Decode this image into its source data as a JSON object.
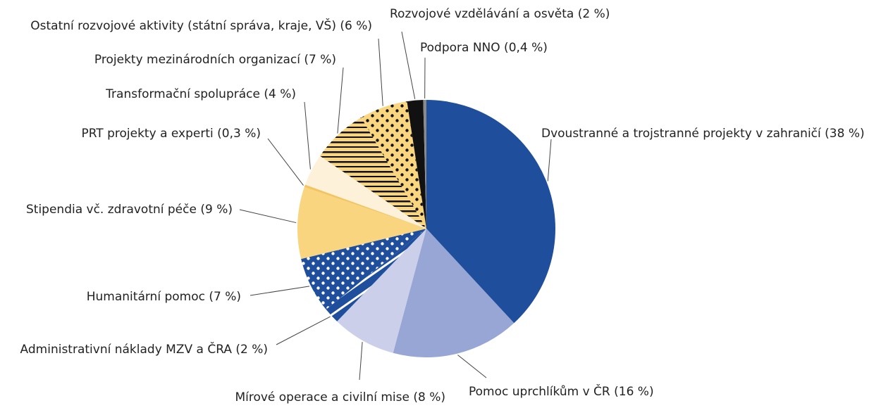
{
  "chart_data": {
    "type": "pie",
    "categories": [
      "Dvoustranné a trojstranné projekty v zahraničí (38 %)",
      "Pomoc uprchlíkům v ČR (16 %)",
      "Mírové operace a civilní mise (8 %)",
      "Administrativní náklady MZV a ČRA (2 %)",
      "Humanitární pomoc (7 %)",
      "Stipendia vč. zdravotní péče (9 %)",
      "PRT projekty a experti (0,3 %)",
      "Transformační spolupráce (4 %)",
      "Projekty mezinárodních organizací (7 %)",
      "Ostatní rozvojové aktivity (státní správa, kraje, VŠ) (6 %)",
      "Rozvojové vzdělávání a osvěta (2 %)",
      "Podpora NNO (0,4 %)"
    ],
    "values": [
      38,
      16,
      8,
      2,
      7,
      9,
      0.3,
      4,
      7,
      6,
      2,
      0.4
    ],
    "colors": [
      "#1f4e9c",
      "#97a6d4",
      "#cbcfea",
      "#1f4e9c",
      "#1f4e9c",
      "#f8d57e",
      "#f3c45f",
      "#fdf1da",
      "#f8d57e",
      "#f8d57e",
      "#111111",
      "#8a8a8a"
    ],
    "patterns": [
      null,
      null,
      null,
      "stripes-diagonal",
      "dots",
      null,
      null,
      null,
      "stripes-horizontal",
      "dots",
      null,
      null
    ]
  }
}
